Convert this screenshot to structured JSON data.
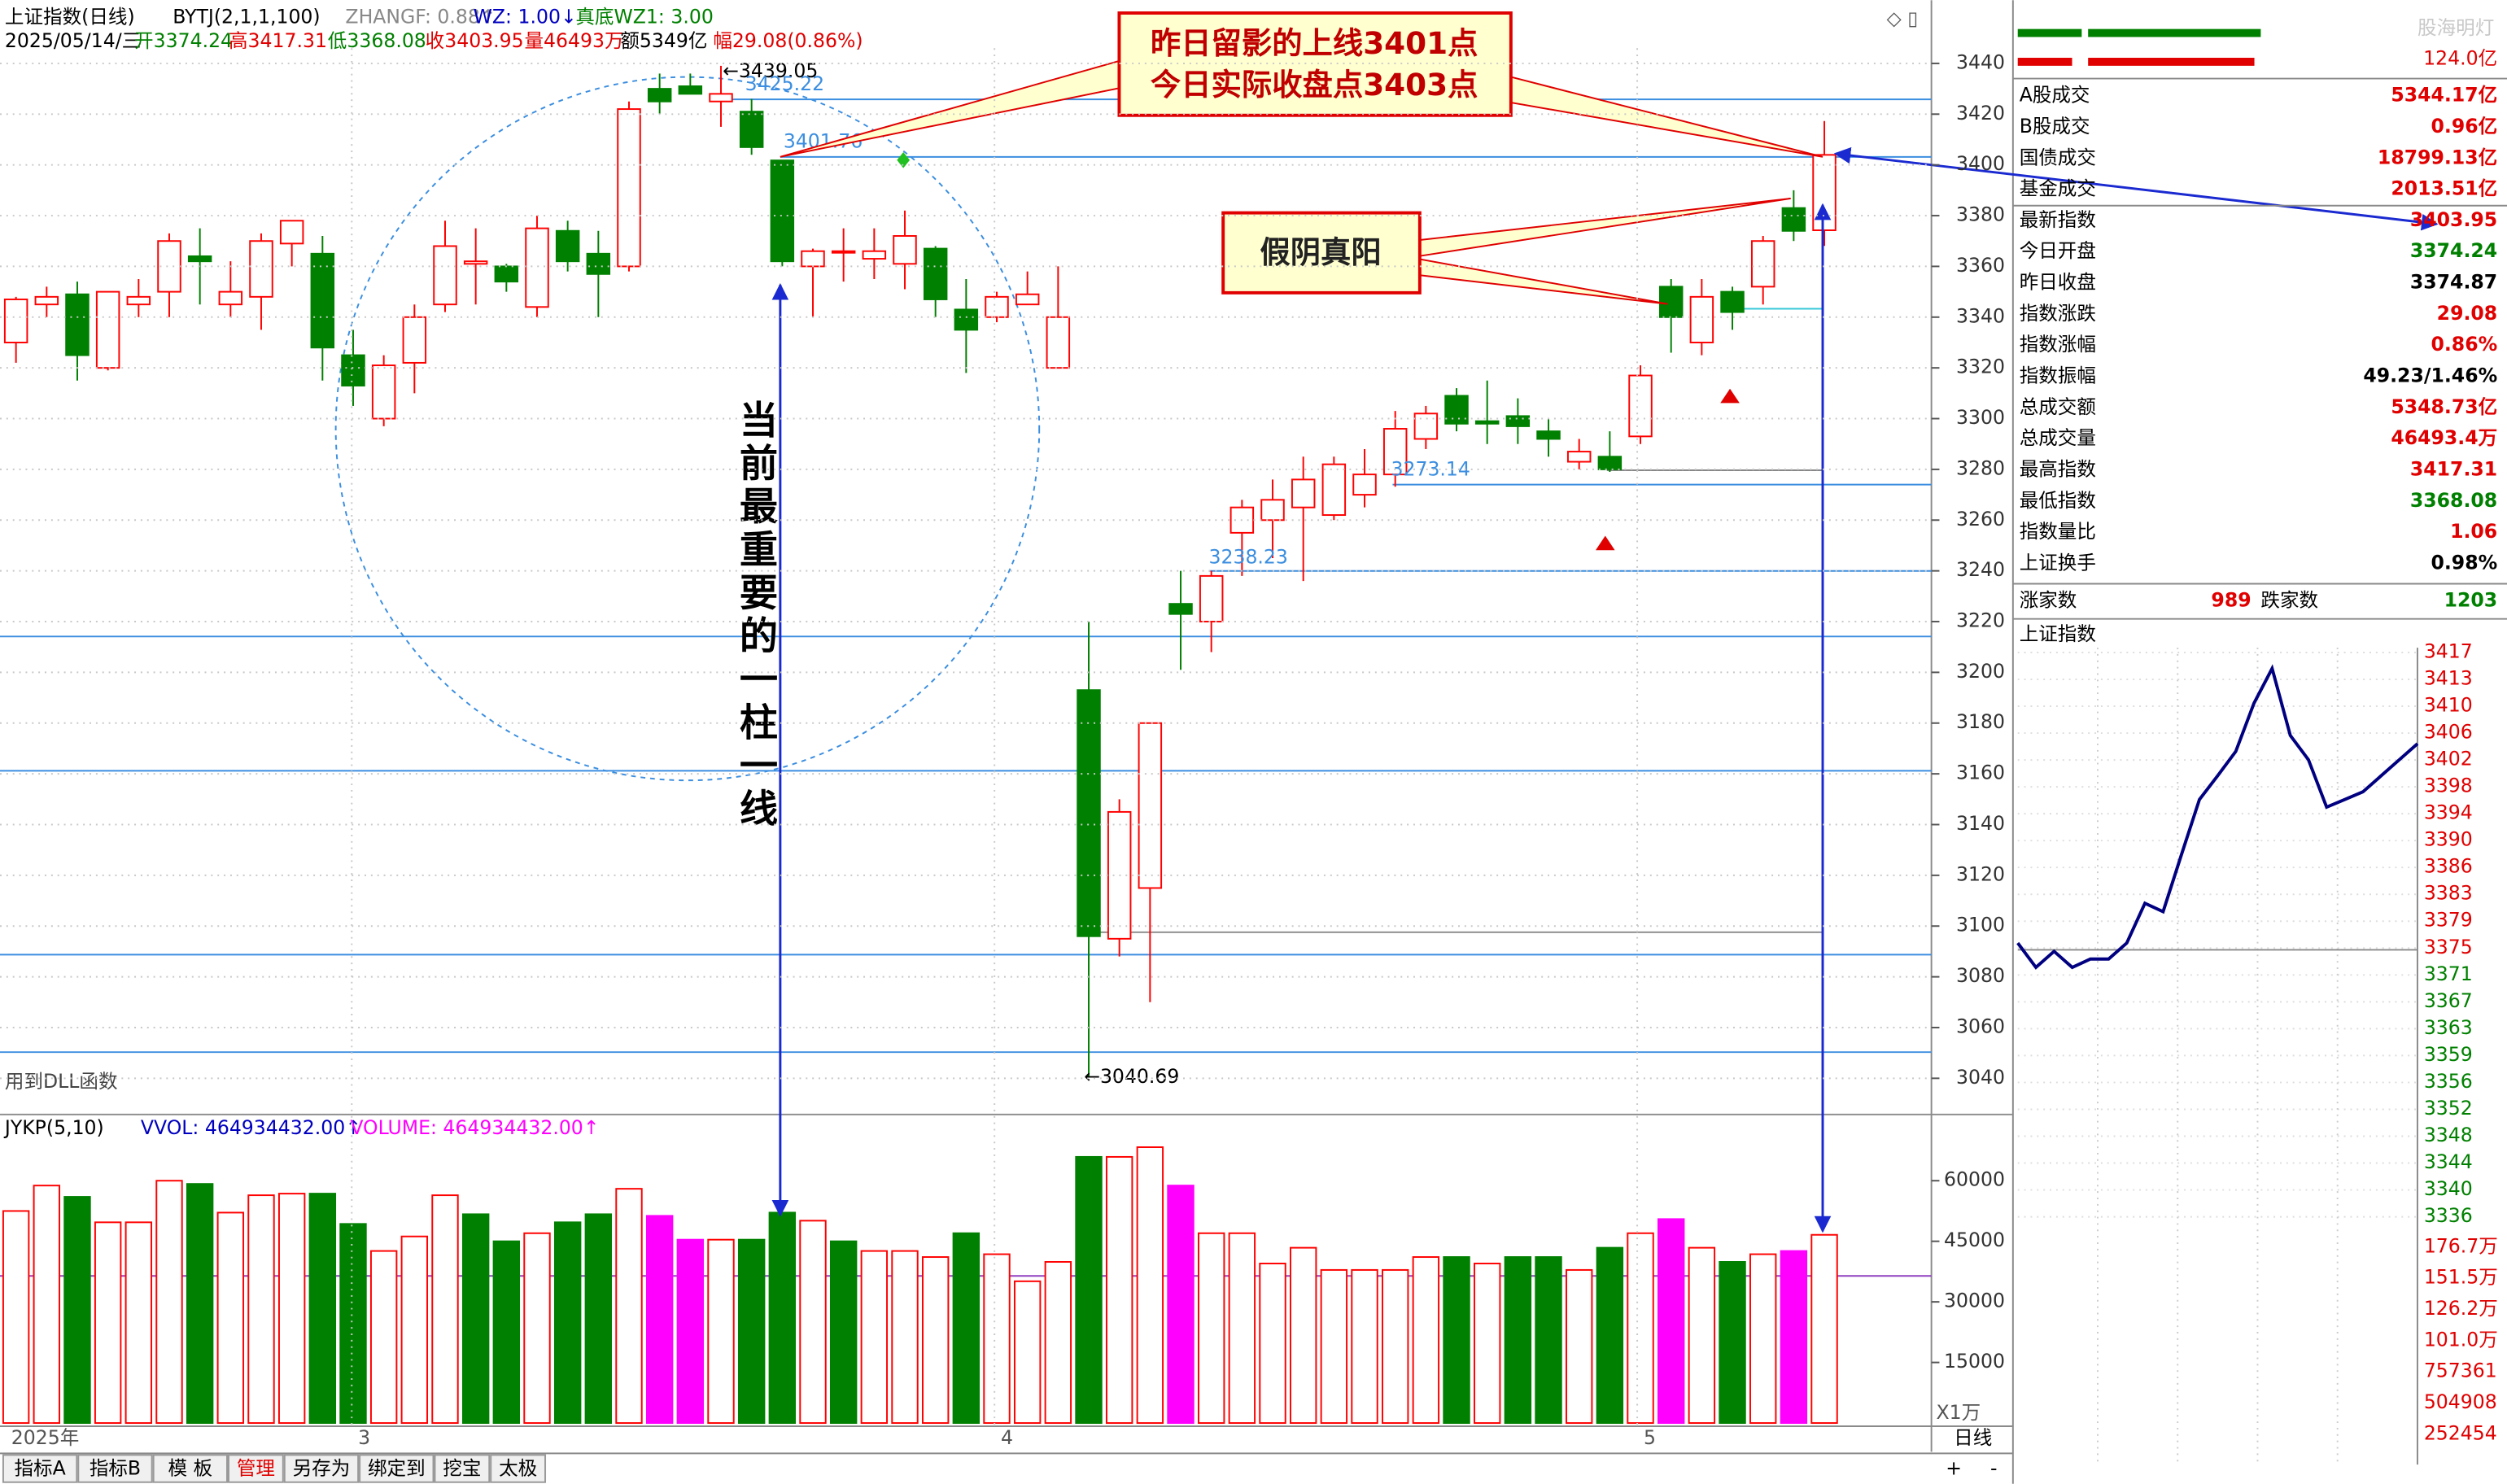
{
  "header": {
    "symbol": "上证指数(日线)",
    "indicator": "BYTJ(2,1,1,100)",
    "zhangf": "ZHANGF: 0.88↑",
    "wz": "WZ: 1.00↓",
    "wz1": "真底WZ1: 3.00",
    "date": "2025/05/14/三",
    "open": "开3374.24",
    "high": "高3417.31",
    "low": "低3368.08",
    "close": "收3403.95",
    "volume": "量46493万",
    "amount": "额5349亿",
    "change": "幅29.08(0.86%)"
  },
  "main_chart": {
    "type": "candlestick",
    "up_color": "#ff0000",
    "down_color": "#008000",
    "ylim": [
      3027,
      3446
    ],
    "yticks": [
      3440,
      3420,
      3400,
      3380,
      3360,
      3340,
      3320,
      3300,
      3280,
      3260,
      3240,
      3220,
      3200,
      3180,
      3160,
      3140,
      3120,
      3100,
      3080,
      3060,
      3040
    ],
    "open": [
      3330,
      3345,
      3349,
      3320,
      3345,
      3350,
      3364,
      3345,
      3348,
      3369,
      3365,
      3325,
      3300,
      3322,
      3345,
      3361,
      3360,
      3344,
      3374,
      3365,
      3360,
      3430,
      3431,
      3425,
      3421,
      3401.76,
      3360,
      3366,
      3363,
      3361,
      3367,
      3343,
      3340,
      3345,
      3320,
      3193,
      3095,
      3115,
      3227,
      3220,
      3255,
      3260,
      3265,
      3262,
      3270,
      3278,
      3292,
      3309,
      3299,
      3301,
      3295,
      3283,
      3285,
      3293,
      3352,
      3330,
      3350,
      3352,
      3383,
      3374.24
    ],
    "high": [
      3348,
      3352,
      3354,
      3350,
      3355,
      3373,
      3375,
      3362,
      3373,
      3378,
      3372,
      3335,
      3325,
      3345,
      3378,
      3375,
      3361,
      3380,
      3378,
      3374,
      3425,
      3436,
      3436,
      3439.05,
      3426,
      3402,
      3367,
      3375,
      3375,
      3382,
      3368,
      3355,
      3350,
      3358,
      3360,
      3220,
      3150,
      3180,
      3240,
      3240,
      3268,
      3276,
      3285,
      3285,
      3288,
      3303,
      3305,
      3312,
      3315,
      3308,
      3300,
      3292,
      3295,
      3321,
      3355,
      3355,
      3352,
      3372,
      3390,
      3417.31
    ],
    "low": [
      3322,
      3340,
      3315,
      3319,
      3340,
      3340,
      3345,
      3340,
      3335,
      3360,
      3315,
      3305,
      3297,
      3310,
      3342,
      3345,
      3350,
      3340,
      3358,
      3340,
      3358,
      3420,
      3428,
      3415,
      3404,
      3360,
      3340,
      3354,
      3355,
      3351,
      3340,
      3318,
      3338,
      3345,
      3320,
      3040.69,
      3088,
      3070,
      3201,
      3208,
      3238,
      3245,
      3236,
      3260,
      3265,
      3273.14,
      3288,
      3295,
      3290,
      3290,
      3285,
      3280,
      3279,
      3290,
      3326,
      3325,
      3335,
      3345,
      3370,
      3368.08
    ],
    "close": [
      3347,
      3348,
      3325,
      3350,
      3348,
      3370,
      3362,
      3350,
      3370,
      3378,
      3328,
      3313,
      3321,
      3340,
      3368,
      3362,
      3354,
      3375,
      3362,
      3357,
      3422,
      3425,
      3428,
      3428,
      3407,
      3362,
      3366,
      3366,
      3366,
      3372,
      3347,
      3335,
      3348,
      3349,
      3340,
      3096,
      3145,
      3180,
      3223,
      3238,
      3265,
      3268,
      3276,
      3282,
      3278,
      3296,
      3302,
      3298,
      3298,
      3297,
      3292,
      3287,
      3280,
      3317,
      3340,
      3348,
      3342,
      3370,
      3374,
      3403.95
    ],
    "price_labels": {
      "high": "←3439.05",
      "low": "←3040.69",
      "level1": "3425.22",
      "level2": "3401.76",
      "level3": "3273.14",
      "level4": "3238.23"
    },
    "note": "用到DLL函数",
    "x_labels": [
      "2025年",
      "3",
      "4",
      "5"
    ]
  },
  "annotations": {
    "callout1": [
      "昨日留影的上线3401点",
      "今日实际收盘点3403点"
    ],
    "callout2": "假阴真阳",
    "vertical": "当前最重要的一柱一线"
  },
  "volume_chart": {
    "type": "bar",
    "title": "JYKP(5,10)",
    "vvol": "VVOL: 464934432.00↑",
    "volume": "VOLUME: 464934432.00↑",
    "unit": "X1万",
    "ylim": [
      0,
      76000
    ],
    "yticks": [
      60000,
      45000,
      30000,
      15000
    ],
    "values": [
      52500,
      58800,
      56000,
      49700,
      49700,
      60000,
      59200,
      52100,
      56400,
      56800,
      56800,
      49300,
      42600,
      46200,
      56400,
      51700,
      45000,
      47000,
      49700,
      51700,
      58000,
      51300,
      45400,
      45400,
      45400,
      52100,
      50100,
      45000,
      42600,
      42600,
      41100,
      47000,
      41800,
      35100,
      39900,
      65900,
      65900,
      68300,
      58800,
      47000,
      47000,
      39500,
      43400,
      37900,
      37900,
      37900,
      41100,
      41100,
      39500,
      41100,
      41100,
      37900,
      43400,
      47000,
      50500,
      43400,
      39900,
      41800,
      42600,
      46600
    ],
    "colors": [
      "#ff0000",
      "#ff0000",
      "#008000",
      "#ff0000",
      "#ff0000",
      "#ff0000",
      "#008000",
      "#ff0000",
      "#ff0000",
      "#ff0000",
      "#008000",
      "#008000",
      "#ff0000",
      "#ff0000",
      "#ff0000",
      "#008000",
      "#008000",
      "#ff0000",
      "#008000",
      "#008000",
      "#ff0000",
      "#ff00ff",
      "#ff00ff",
      "#ff0000",
      "#008000",
      "#008000",
      "#ff0000",
      "#008000",
      "#ff0000",
      "#ff0000",
      "#ff0000",
      "#008000",
      "#ff0000",
      "#ff0000",
      "#ff0000",
      "#008000",
      "#ff0000",
      "#ff0000",
      "#ff00ff",
      "#ff0000",
      "#ff0000",
      "#ff0000",
      "#ff0000",
      "#ff0000",
      "#ff0000",
      "#ff0000",
      "#ff0000",
      "#008000",
      "#ff0000",
      "#008000",
      "#008000",
      "#ff0000",
      "#008000",
      "#ff0000",
      "#ff00ff",
      "#ff0000",
      "#008000",
      "#ff0000",
      "#ff00ff",
      "#ff0000"
    ]
  },
  "quote_panel": {
    "top_amount": "124.0亿",
    "rows": [
      {
        "label": "A股成交",
        "value": "5344.17亿",
        "color": "#e00000"
      },
      {
        "label": "B股成交",
        "value": "0.96亿",
        "color": "#e00000"
      },
      {
        "label": "国债成交",
        "value": "18799.13亿",
        "color": "#e00000"
      },
      {
        "label": "基金成交",
        "value": "2013.51亿",
        "color": "#e00000"
      },
      {
        "label": "最新指数",
        "value": "3403.95",
        "color": "#e00000"
      },
      {
        "label": "今日开盘",
        "value": "3374.24",
        "color": "#008000"
      },
      {
        "label": "昨日收盘",
        "value": "3374.87",
        "color": "#000000"
      },
      {
        "label": "指数涨跌",
        "value": "29.08",
        "color": "#e00000"
      },
      {
        "label": "指数涨幅",
        "value": "0.86%",
        "color": "#e00000"
      },
      {
        "label": "指数振幅",
        "value": "49.23/1.46%",
        "color": "#000000"
      },
      {
        "label": "总成交额",
        "value": "5348.73亿",
        "color": "#e00000"
      },
      {
        "label": "总成交量",
        "value": "46493.4万",
        "color": "#e00000"
      },
      {
        "label": "最高指数",
        "value": "3417.31",
        "color": "#e00000"
      },
      {
        "label": "最低指数",
        "value": "3368.08",
        "color": "#008000"
      },
      {
        "label": "指数量比",
        "value": "1.06",
        "color": "#e00000"
      },
      {
        "label": "上证换手",
        "value": "0.98%",
        "color": "#000000"
      }
    ],
    "advance_label": "涨家数",
    "advance": "989",
    "decline_label": "跌家数",
    "decline": "1203"
  },
  "intraday": {
    "title": "上证指数",
    "ylim": [
      3336,
      3417
    ],
    "prices": [
      3375.3,
      3371.8,
      3374.1,
      3371.8,
      3373,
      3373,
      3375.3,
      3381,
      3379.8,
      3387.9,
      3395.9,
      3399.3,
      3402.8,
      3409.7,
      3414.7,
      3405.1,
      3401.6,
      3394.8,
      3395.9,
      3397,
      3399.3,
      3401.6,
      3403.9
    ],
    "price_labels": [
      "3417",
      "3413",
      "3410",
      "3406",
      "3402",
      "3398",
      "3394",
      "3390",
      "3386",
      "3383",
      "3379",
      "3375",
      "3371",
      "3367",
      "3363",
      "3359",
      "3356",
      "3352",
      "3348",
      "3344",
      "3340",
      "3336"
    ],
    "volume_labels": [
      "176.7万",
      "151.5万",
      "126.2万",
      "101.0万",
      "757361",
      "504908",
      "252454"
    ]
  },
  "toolbar": {
    "tabs": [
      "指标A",
      "指标B",
      "模 板",
      "管理",
      "另存为",
      "绑定到",
      "挖宝",
      "太极"
    ],
    "period": "日线",
    "buttons": [
      "+",
      "-"
    ]
  },
  "watermark": "股海明灯"
}
